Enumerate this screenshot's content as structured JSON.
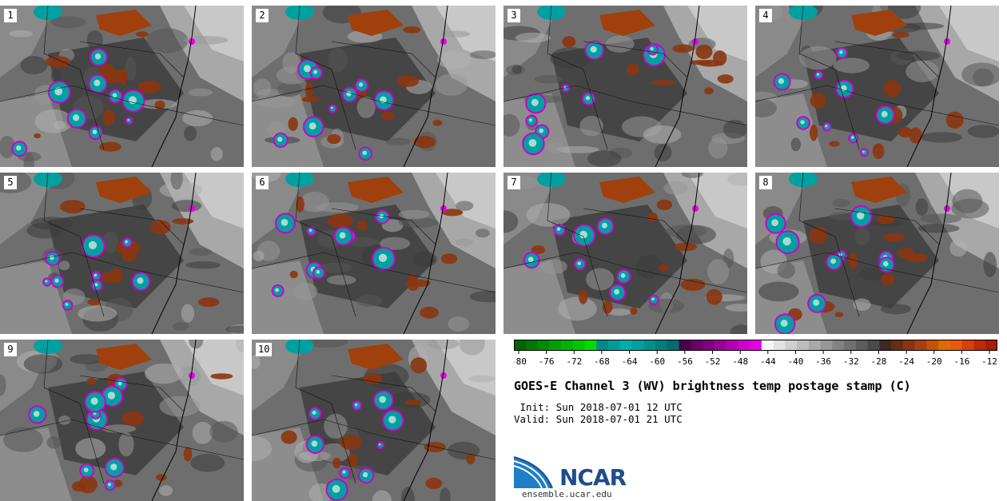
{
  "panels": [
    {
      "label": "1"
    },
    {
      "label": "2"
    },
    {
      "label": "3"
    },
    {
      "label": "4"
    },
    {
      "label": "5"
    },
    {
      "label": "6"
    },
    {
      "label": "7"
    },
    {
      "label": "8"
    },
    {
      "label": "9"
    },
    {
      "label": "10"
    }
  ],
  "colorbar": {
    "colors": [
      "#006400",
      "#007800",
      "#008c00",
      "#00a000",
      "#00b400",
      "#00c800",
      "#00dc00",
      "#008a8a",
      "#009c9c",
      "#00aeae",
      "#00a0a0",
      "#008f8f",
      "#007e7e",
      "#006d6d",
      "#4b004b",
      "#6a006a",
      "#800080",
      "#990099",
      "#b300b3",
      "#cc00cc",
      "#e600e6",
      "#f5f5f5",
      "#e2e2e2",
      "#cfcfcf",
      "#bcbcbc",
      "#a9a9a9",
      "#969696",
      "#838383",
      "#707070",
      "#5d5d5d",
      "#4a4a4a",
      "#3a2a22",
      "#6b2d12",
      "#8b3510",
      "#a8400c",
      "#c85008",
      "#e06a06",
      "#e85a08",
      "#d8400a",
      "#c02a08",
      "#a81e05"
    ],
    "tick_labels": [
      "-80",
      "-76",
      "-72",
      "-68",
      "-64",
      "-60",
      "-56",
      "-52",
      "-48",
      "-44",
      "-40",
      "-36",
      "-32",
      "-28",
      "-24",
      "-20",
      "-16",
      "-12"
    ]
  },
  "title": "GOES-E Channel 3 (WV) brightness temp postage stamp (C)",
  "init_text": " Init: Sun 2018-07-01 12 UTC",
  "valid_text": "Valid: Sun 2018-07-01 21 UTC",
  "logo_text": "NCAR",
  "url_text": "ensemble.ucar.edu"
}
